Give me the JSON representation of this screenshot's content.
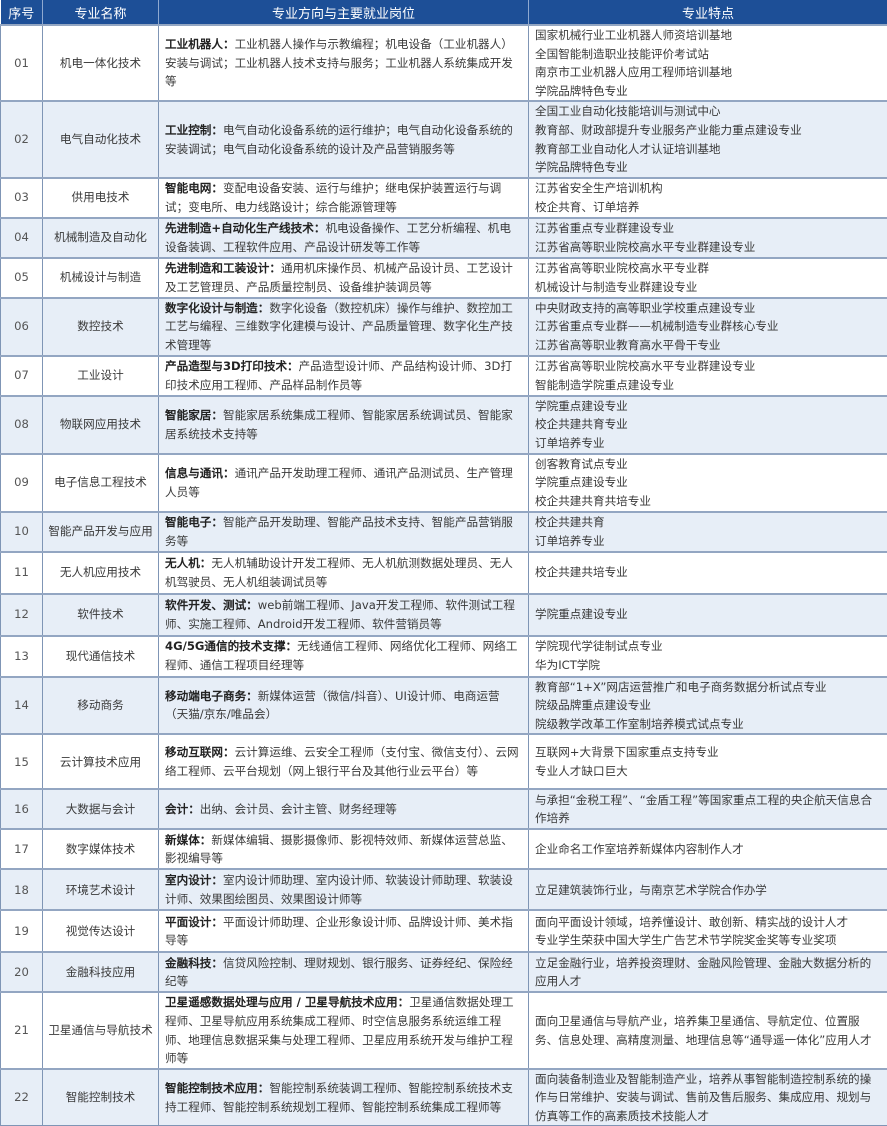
{
  "header": {
    "no": "序号",
    "name": "专业名称",
    "direction": "专业方向与主要就业岗位",
    "feature": "专业特点"
  },
  "colors": {
    "header_bg": "#1d4f97",
    "alt_row_bg": "#e7eef7"
  },
  "rows": [
    {
      "no": "01",
      "name": "机电一体化技术",
      "dir_title": "工业机器人：",
      "dir_text": "工业机器人操作与示教编程；机电设备（工业机器人）安装与调试；工业机器人技术支持与服务；工业机器人系统集成开发等",
      "features": [
        "国家机械行业工业机器人师资培训基地",
        "全国智能制造职业技能评价考试站",
        "南京市工业机器人应用工程师培训基地",
        "学院品牌特色专业"
      ]
    },
    {
      "no": "02",
      "name": "电气自动化技术",
      "dir_title": "工业控制：",
      "dir_text": "电气自动化设备系统的运行维护；电气自动化设备系统的安装调试；电气自动化设备系统的设计及产品营销服务等",
      "features": [
        "全国工业自动化技能培训与测试中心",
        "教育部、财政部提升专业服务产业能力重点建设专业",
        "教育部工业自动化人才认证培训基地",
        "学院品牌特色专业"
      ]
    },
    {
      "no": "03",
      "name": "供用电技术",
      "dir_title": "智能电网：",
      "dir_text": "变配电设备安装、运行与维护；继电保护装置运行与调试；变电所、电力线路设计；综合能源管理等",
      "features": [
        "江苏省安全生产培训机构",
        "校企共育、订单培养"
      ]
    },
    {
      "no": "04",
      "name": "机械制造及自动化",
      "dir_title": "先进制造+自动化生产线技术：",
      "dir_text": "机电设备操作、工艺分析编程、机电设备装调、工程软件应用、产品设计研发等工作等",
      "features": [
        "江苏省重点专业群建设专业",
        "江苏省高等职业院校高水平专业群建设专业"
      ]
    },
    {
      "no": "05",
      "name": "机械设计与制造",
      "dir_title": "先进制造和工装设计：",
      "dir_text": "通用机床操作员、机械产品设计员、工艺设计及工艺管理员、产品质量控制员、设备维护装调员等",
      "features": [
        "江苏省高等职业院校高水平专业群",
        "机械设计与制造专业群建设专业"
      ]
    },
    {
      "no": "06",
      "name": "数控技术",
      "dir_title": "数字化设计与制造：",
      "dir_text": "数字化设备（数控机床）操作与维护、数控加工工艺与编程、三维数字化建模与设计、产品质量管理、数字化生产技术管理等",
      "features": [
        "中央财政支持的高等职业学校重点建设专业",
        "江苏省重点专业群——机械制造专业群核心专业",
        "江苏省高等职业教育高水平骨干专业"
      ]
    },
    {
      "no": "07",
      "name": "工业设计",
      "dir_title": "产品造型与3D打印技术：",
      "dir_text": "产品造型设计师、产品结构设计师、3D打印技术应用工程师、产品样品制作员等",
      "features": [
        "江苏省高等职业院校高水平专业群建设专业",
        "智能制造学院重点建设专业"
      ]
    },
    {
      "no": "08",
      "name": "物联网应用技术",
      "dir_title": "智能家居：",
      "dir_text": "智能家居系统集成工程师、智能家居系统调试员、智能家居系统技术支持等",
      "features": [
        "学院重点建设专业",
        "校企共建共育专业",
        "订单培养专业"
      ]
    },
    {
      "no": "09",
      "name": "电子信息工程技术",
      "dir_title": "信息与通讯：",
      "dir_text": "通讯产品开发助理工程师、通讯产品测试员、生产管理人员等",
      "features": [
        "创客教育试点专业",
        "学院重点建设专业",
        "校企共建共育共培专业"
      ]
    },
    {
      "no": "10",
      "name": "智能产品开发与应用",
      "dir_title": "智能电子：",
      "dir_text": "智能产品开发助理、智能产品技术支持、智能产品营销服务等",
      "features": [
        "校企共建共育",
        "订单培养专业"
      ]
    },
    {
      "no": "11",
      "name": "无人机应用技术",
      "dir_title": "无人机：",
      "dir_text": "无人机辅助设计开发工程师、无人机航测数据处理员、无人机驾驶员、无人机组装调试员等",
      "features": [
        "校企共建共培专业"
      ]
    },
    {
      "no": "12",
      "name": "软件技术",
      "dir_title": "软件开发、测试：",
      "dir_text": "web前端工程师、Java开发工程师、软件测试工程师、实施工程师、Android开发工程师、软件营销员等",
      "features": [
        "学院重点建设专业"
      ]
    },
    {
      "no": "13",
      "name": "现代通信技术",
      "dir_title": "4G/5G通信的技术支撑：",
      "dir_text": "无线通信工程师、网络优化工程师、网络工程师、通信工程项目经理等",
      "features": [
        "学院现代学徒制试点专业",
        "华为ICT学院"
      ]
    },
    {
      "no": "14",
      "name": "移动商务",
      "dir_title": "移动端电子商务：",
      "dir_text": "新媒体运营（微信/抖音）、UI设计师、电商运营（天猫/京东/唯品会）",
      "features": [
        "教育部“1+X”网店运营推广和电子商务数据分析试点专业",
        "院级品牌重点建设专业",
        "院级教学改革工作室制培养模式试点专业"
      ]
    },
    {
      "no": "15",
      "name": "云计算技术应用",
      "dir_title": "移动互联网：",
      "dir_text": "云计算运维、云安全工程师（支付宝、微信支付）、云网络工程师、云平台规划（网上银行平台及其他行业云平台）等",
      "features": [
        "互联网+大背景下国家重点支持专业",
        "专业人才缺口巨大"
      ]
    },
    {
      "no": "16",
      "name": "大数据与会计",
      "dir_title": "会计：",
      "dir_text": "出纳、会计员、会计主管、财务经理等",
      "features": [
        "与承担“金税工程”、“金盾工程”等国家重点工程的央企航天信息合作培养"
      ]
    },
    {
      "no": "17",
      "name": "数字媒体技术",
      "dir_title": "新媒体：",
      "dir_text": "新媒体编辑、摄影摄像师、影视特效师、新媒体运营总监、影视编导等",
      "features": [
        "企业命名工作室培养新媒体内容制作人才"
      ]
    },
    {
      "no": "18",
      "name": "环境艺术设计",
      "dir_title": "室内设计：",
      "dir_text": "室内设计师助理、室内设计师、软装设计师助理、软装设计师、效果图绘图员、效果图设计师等",
      "features": [
        "立足建筑装饰行业，与南京艺术学院合作办学"
      ]
    },
    {
      "no": "19",
      "name": "视觉传达设计",
      "dir_title": "平面设计：",
      "dir_text": "平面设计师助理、企业形象设计师、品牌设计师、美术指导等",
      "features": [
        "面向平面设计领域，培养懂设计、敢创新、精实战的设计人才",
        "专业学生荣获中国大学生广告艺术节学院奖金奖等专业奖项"
      ]
    },
    {
      "no": "20",
      "name": "金融科技应用",
      "dir_title": "金融科技：",
      "dir_text": "信贷风险控制、理财规划、银行服务、证券经纪、保险经纪等",
      "features": [
        "立足金融行业，培养投资理财、金融风险管理、金融大数据分析的应用人才"
      ]
    },
    {
      "no": "21",
      "name": "卫星通信与导航技术",
      "dir_title": "卫星遥感数据处理与应用 / 卫星导航技术应用：",
      "dir_text": "卫星通信数据处理工程师、卫星导航应用系统集成工程师、时空信息服务系统运维工程师、地理信息数据采集与处理工程师、卫星应用系统开发与维护工程师等",
      "features": [
        "面向卫星通信与导航产业，培养集卫星通信、导航定位、位置服务、信息处理、高精度测量、地理信息等“通导遥一体化”应用人才"
      ]
    },
    {
      "no": "22",
      "name": "智能控制技术",
      "dir_title": "智能控制技术应用：",
      "dir_text": "智能控制系统装调工程师、智能控制系统技术支持工程师、智能控制系统规划工程师、智能控制系统集成工程师等",
      "features": [
        "面向装备制造业及智能制造产业，培养从事智能制造控制系统的操作与日常维护、安装与调试、售前及售后服务、集成应用、规划与仿真等工作的高素质技术技能人才"
      ]
    }
  ]
}
